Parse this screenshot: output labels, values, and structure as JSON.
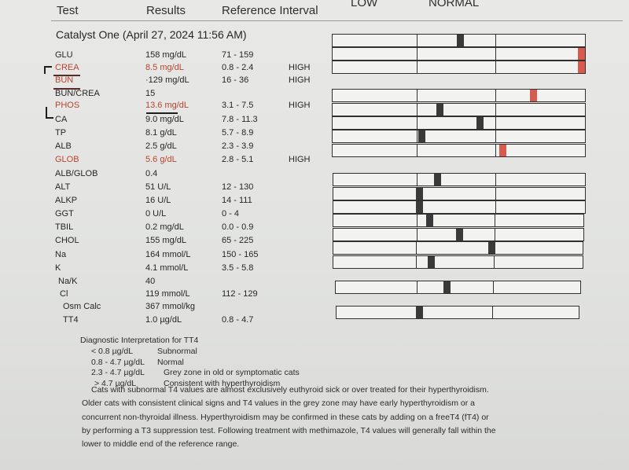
{
  "header": {
    "test": "Test",
    "results": "Results",
    "reference": "Reference Interval",
    "low": "LOW",
    "normal": "NORMAL"
  },
  "section_title": "Catalyst One (April 27, 2024 11:56 AM)",
  "rows": [
    {
      "name": "GLU",
      "result": "158 mg/dL",
      "ref": "71 - 159",
      "flag": "",
      "marker": 0.5,
      "high": false
    },
    {
      "name": "CREA",
      "result": "8.5 mg/dL",
      "ref": "0.8 - 2.4",
      "flag": "HIGH",
      "marker": 0.99,
      "high": true
    },
    {
      "name": "BUN",
      "result": "·129 mg/dL",
      "ref": "16 - 36",
      "flag": "HIGH",
      "marker": 0.99,
      "high": true
    },
    {
      "name": "BUN/CREA",
      "result": "15",
      "ref": "",
      "flag": ""
    },
    {
      "name": "PHOS",
      "result": "13.6 mg/dL",
      "ref": "3.1 - 7.5",
      "flag": "HIGH",
      "marker": 0.79,
      "high": true
    },
    {
      "name": "CA",
      "result": "9.0 mg/dL",
      "ref": "7.8 - 11.3",
      "flag": "",
      "marker": 0.42,
      "high": false
    },
    {
      "name": "TP",
      "result": "8.1 g/dL",
      "ref": "5.7 - 8.9",
      "flag": "",
      "marker": 0.58,
      "high": false
    },
    {
      "name": "ALB",
      "result": "2.5 g/dL",
      "ref": "2.3 - 3.9",
      "flag": "",
      "marker": 0.35,
      "high": false
    },
    {
      "name": "GLOB",
      "result": "5.6 g/dL",
      "ref": "2.8 - 5.1",
      "flag": "HIGH",
      "marker": 0.67,
      "high": true
    },
    {
      "name": "ALB/GLOB",
      "result": "0.4",
      "ref": "",
      "flag": ""
    },
    {
      "name": "ALT",
      "result": "51 U/L",
      "ref": "12 - 130",
      "flag": "",
      "marker": 0.41,
      "high": false
    },
    {
      "name": "ALKP",
      "result": "16 U/L",
      "ref": "14 - 111",
      "flag": "",
      "marker": 0.34,
      "high": false
    },
    {
      "name": "GGT",
      "result": "0 U/L",
      "ref": "0 - 4",
      "flag": "",
      "marker": 0.34,
      "high": false
    },
    {
      "name": "TBIL",
      "result": "0.2 mg/dL",
      "ref": "0.0 - 0.9",
      "flag": "",
      "marker": 0.38,
      "high": false
    },
    {
      "name": "CHOL",
      "result": "155 mg/dL",
      "ref": "65 - 225",
      "flag": "",
      "marker": 0.5,
      "high": false
    },
    {
      "name": "Na",
      "result": "164 mmol/L",
      "ref": "150 - 165",
      "flag": "",
      "marker": 0.63,
      "high": false
    },
    {
      "name": "K",
      "result": "4.1 mmol/L",
      "ref": "3.5 - 5.8",
      "flag": "",
      "marker": 0.39,
      "high": false
    },
    {
      "name": "Na/K",
      "result": "40",
      "ref": "",
      "flag": ""
    },
    {
      "name": "Cl",
      "result": "119 mmol/L",
      "ref": "112 - 129",
      "flag": "",
      "marker": 0.45,
      "high": false
    },
    {
      "name": "Osm Calc",
      "result": "367 mmol/kg",
      "ref": "",
      "flag": ""
    },
    {
      "name": "TT4",
      "result": "1.0 µg/dL",
      "ref": "0.8 - 4.7",
      "flag": "",
      "marker": 0.34,
      "high": false
    }
  ],
  "diagnostic": {
    "title": "Diagnostic Interpretation for TT4",
    "items": [
      {
        "range": "< 0.8 µg/dL",
        "text": "Subnormal"
      },
      {
        "range": "0.8 - 4.7 µg/dL",
        "text": "Normal"
      },
      {
        "range": "2.3 - 4.7 µg/dL",
        "text": "Grey zone in old or symptomatic cats"
      },
      {
        "range": "> 4.7 µg/dL",
        "text": "Consistent with hyperthyroidism"
      }
    ],
    "lines": [
      "Cats with subnormal T4 values are almost exclusively euthyroid sick or over treated for their hyperthyroidism.",
      "Older cats with consistent clinical signs and T4 values in the grey zone may have early hyperthyroidism or a",
      "concurrent non-thyroidal illness. Hyperthyroidism may be confirmed in these cats by adding on a freeT4 (fT4) or",
      "by performing a T3 suppression test. Following treatment with methimazole, T4 values will generally fall within the",
      "lower to middle end of the reference range."
    ]
  }
}
